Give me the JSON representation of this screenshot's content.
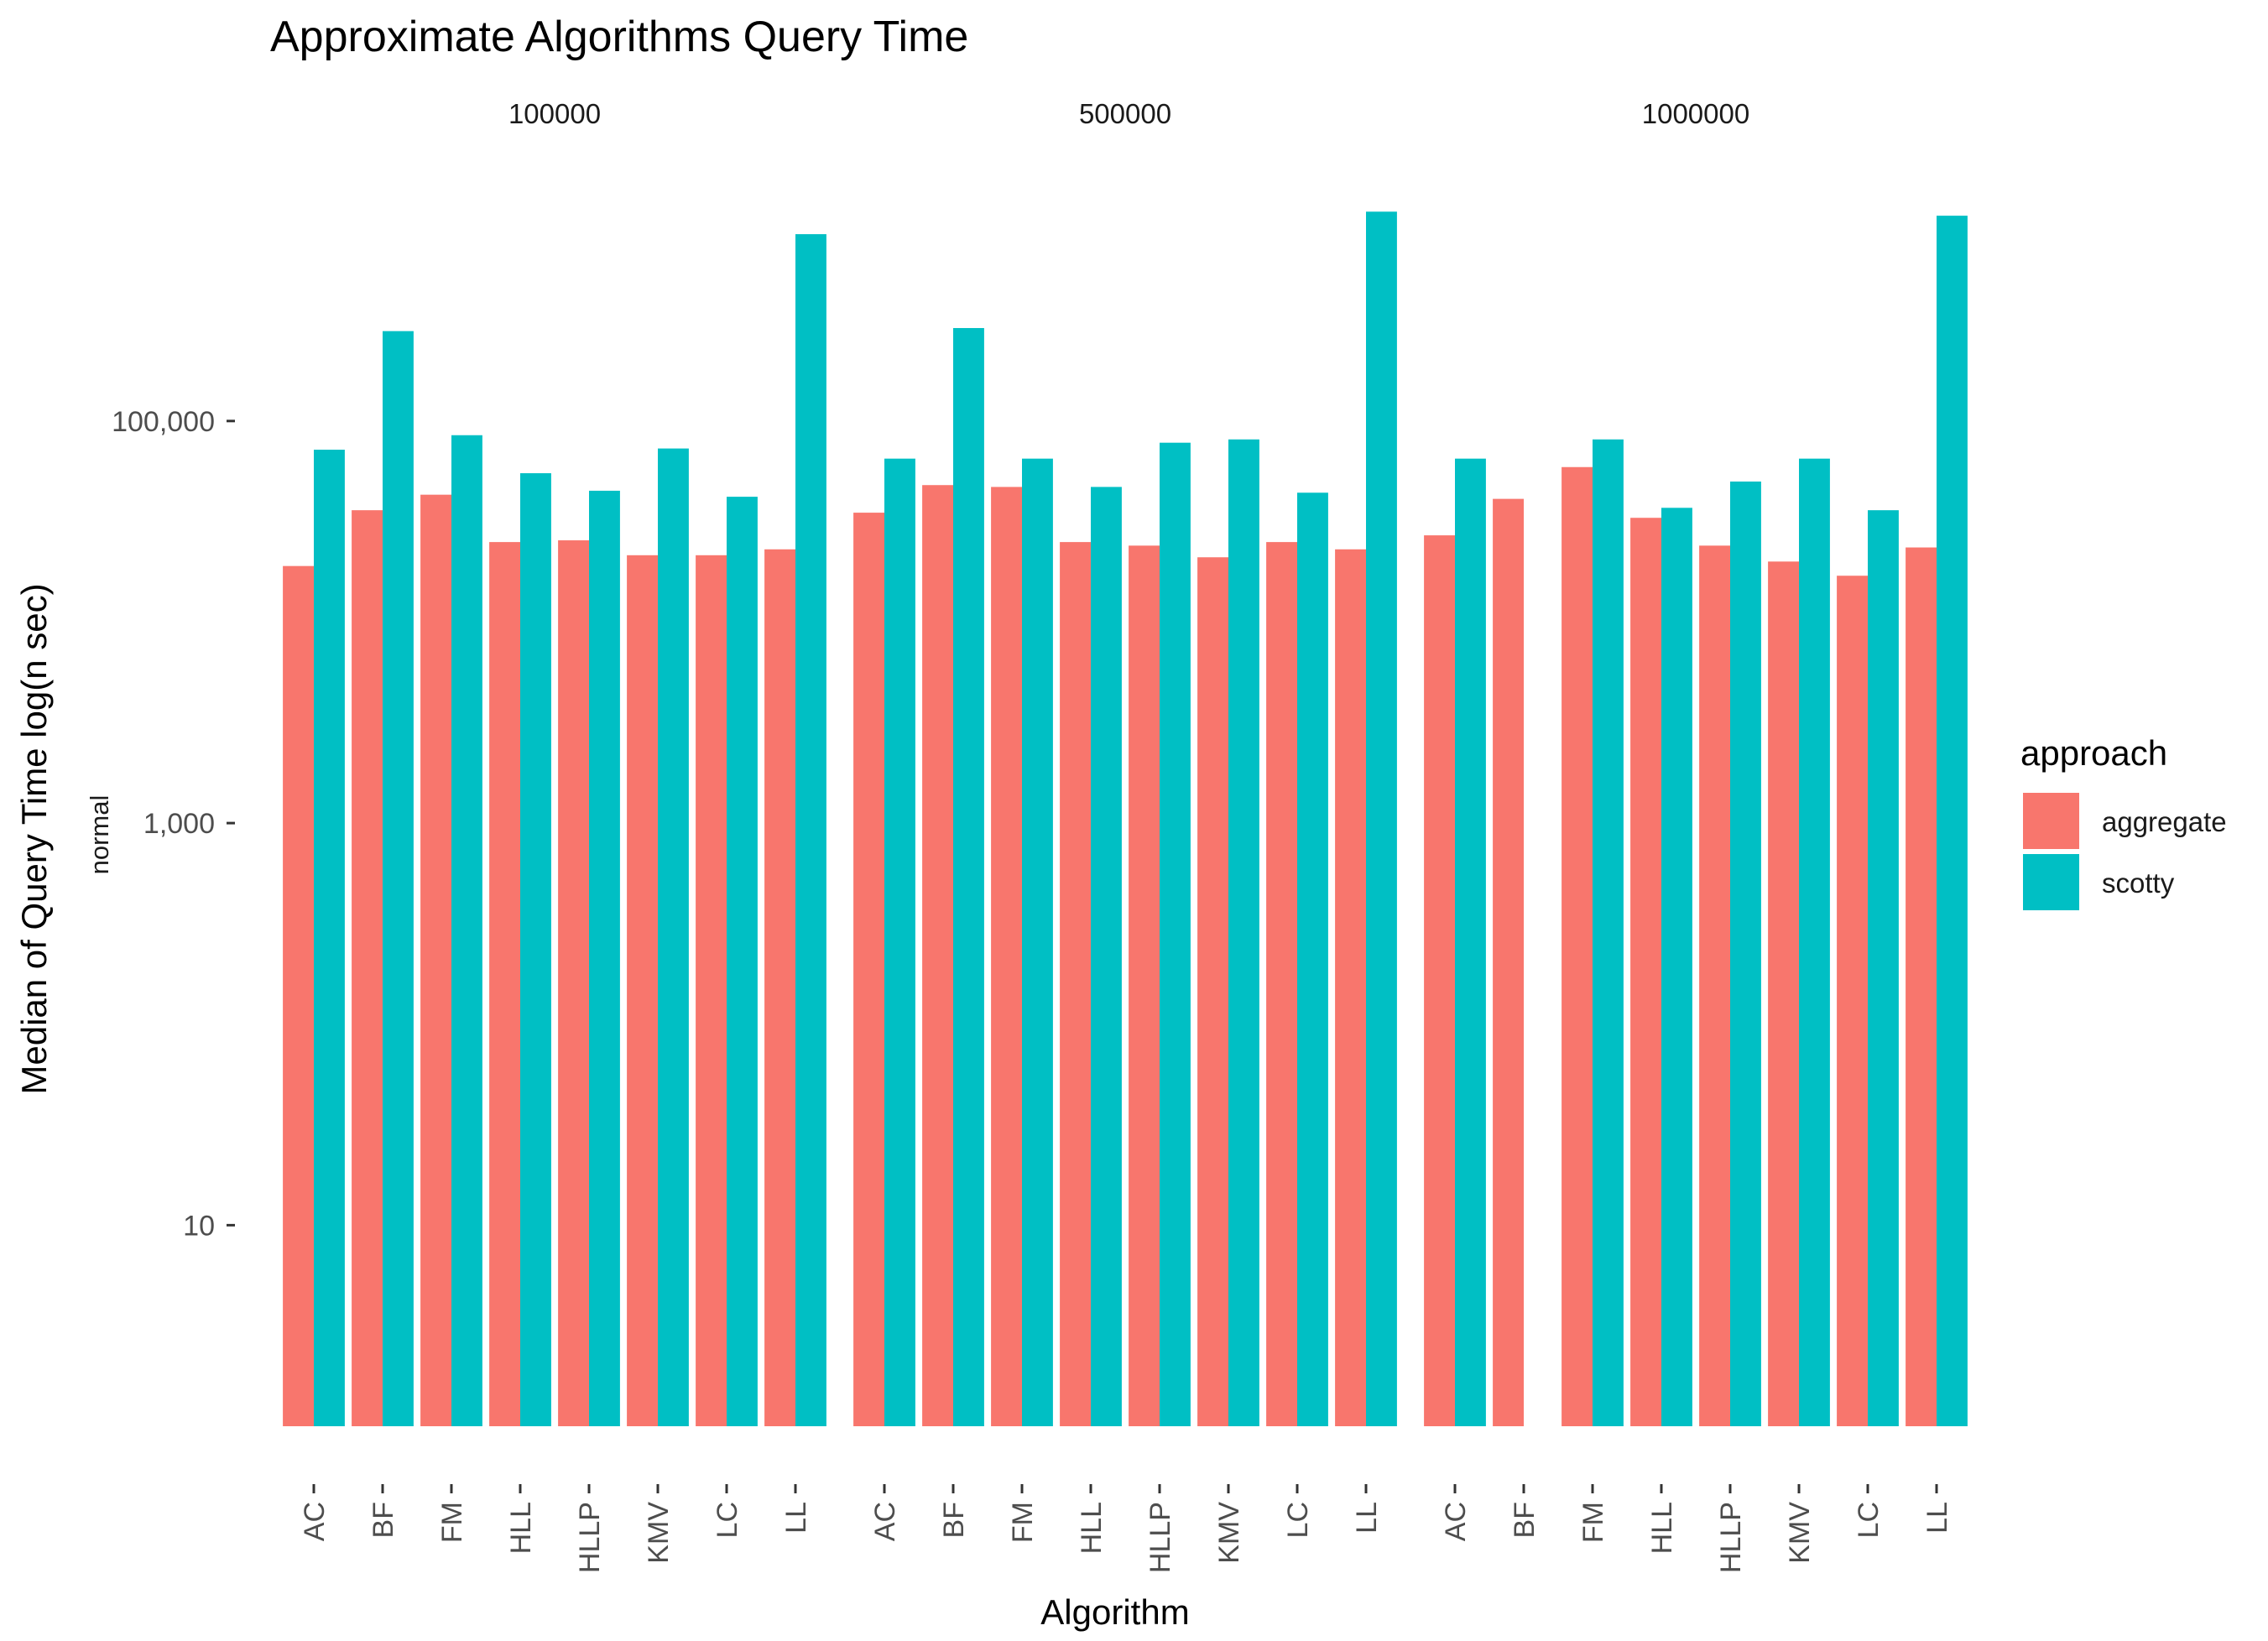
{
  "chart_data": {
    "type": "bar",
    "title": "Approximate Algorithms Query Time",
    "xlabel": "Algorithm",
    "ylabel": "Median of Query Time log(n sec)",
    "subtitle_label": "normal",
    "y_scale": "log10",
    "ylim": [
      1,
      1500000
    ],
    "y_ticks": [
      {
        "value": 10,
        "label": "10"
      },
      {
        "value": 1000,
        "label": "1,000"
      },
      {
        "value": 100000,
        "label": "100,000"
      }
    ],
    "grid": false,
    "legend": {
      "title": "approach",
      "position": "right",
      "entries": [
        {
          "label": "aggregate",
          "color": "#F8766D"
        },
        {
          "label": "scotty",
          "color": "#00BFC4"
        }
      ]
    },
    "categories": [
      "AC",
      "BF",
      "FM",
      "HLL",
      "HLLP",
      "KMV",
      "LC",
      "LL"
    ],
    "facets": [
      {
        "label": "100000",
        "series": [
          {
            "name": "aggregate",
            "values": [
              19000,
              36000,
              43000,
              25000,
              25500,
              21500,
              21500,
              23000
            ]
          },
          {
            "name": "scotty",
            "values": [
              72000,
              280000,
              85000,
              55000,
              45000,
              73000,
              42000,
              850000
            ]
          }
        ]
      },
      {
        "label": "500000",
        "series": [
          {
            "name": "aggregate",
            "values": [
              35000,
              48000,
              47000,
              25000,
              24000,
              21000,
              25000,
              23000
            ]
          },
          {
            "name": "scotty",
            "values": [
              65000,
              290000,
              65000,
              47000,
              78000,
              81000,
              44000,
              1100000
            ]
          }
        ]
      },
      {
        "label": "1000000",
        "series": [
          {
            "name": "aggregate",
            "values": [
              27000,
              41000,
              59000,
              33000,
              24000,
              20000,
              17000,
              23500
            ]
          },
          {
            "name": "scotty",
            "values": [
              65000,
              0,
              81000,
              37000,
              50000,
              65000,
              36000,
              1050000
            ]
          }
        ]
      }
    ]
  }
}
